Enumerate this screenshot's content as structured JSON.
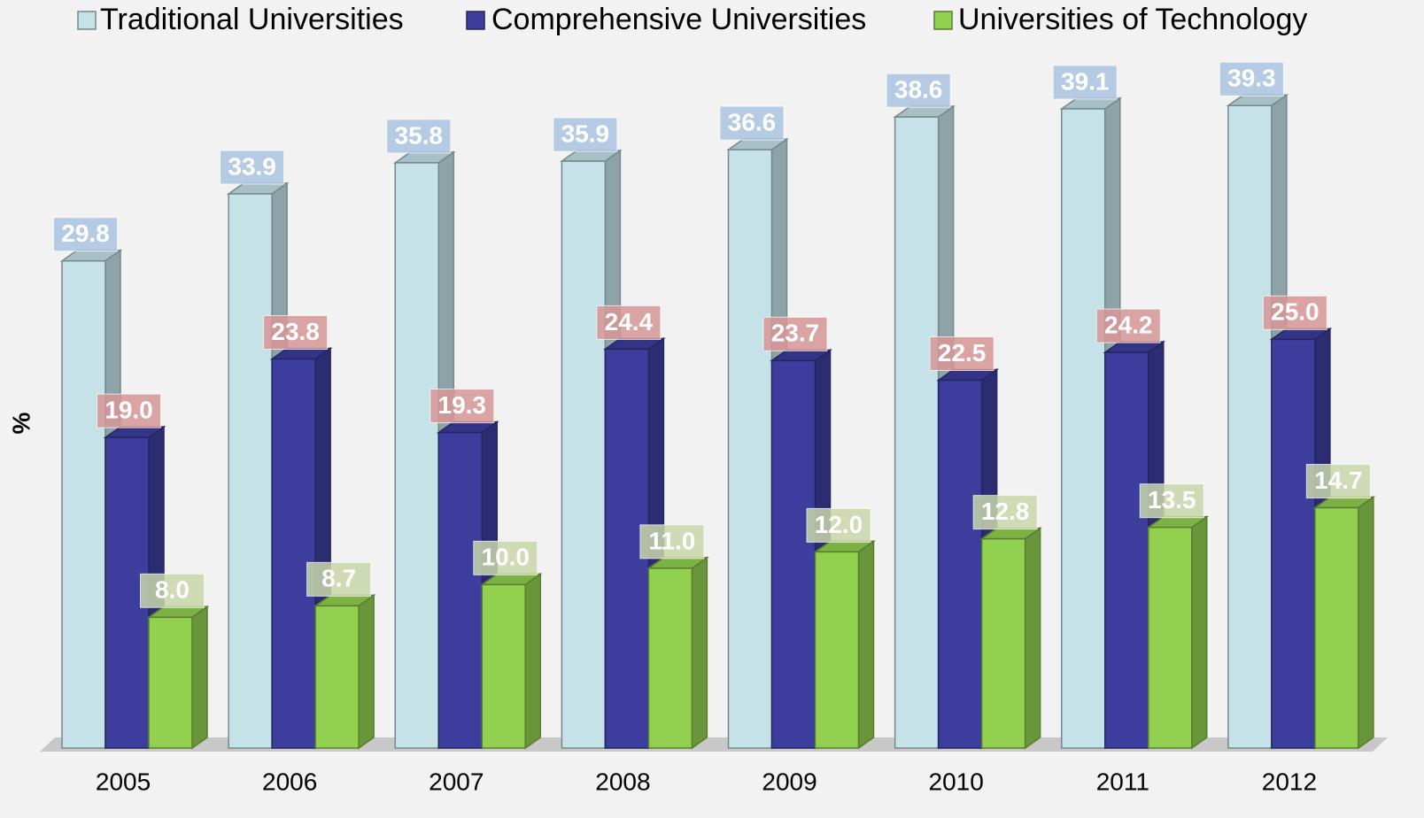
{
  "chart_data": {
    "type": "bar3d",
    "y_label": "%",
    "categories": [
      "2005",
      "2006",
      "2007",
      "2008",
      "2009",
      "2010",
      "2011",
      "2012"
    ],
    "ylim": [
      0,
      45
    ],
    "legend": "top",
    "series": [
      {
        "name": "Traditional Universities",
        "color": "#c4e2e8",
        "values": [
          29.8,
          33.9,
          35.8,
          35.9,
          36.6,
          38.6,
          39.1,
          39.3
        ],
        "value_labels": [
          "29.8",
          "33.9",
          "35.8",
          "35.9",
          "36.6",
          "38.6",
          "39.1",
          "39.3"
        ]
      },
      {
        "name": "Comprehensive Universities",
        "color": "#3d3d9e",
        "values": [
          19.0,
          23.8,
          19.3,
          24.4,
          23.7,
          22.5,
          24.2,
          25.0
        ],
        "value_labels": [
          "19.0",
          "23.8",
          "19.3",
          "24.4",
          "23.7",
          "22.5",
          "24.2",
          "25.0"
        ]
      },
      {
        "name": "Universities of Technology",
        "color": "#92d050",
        "values": [
          8.0,
          8.7,
          10.0,
          11.0,
          12.0,
          12.8,
          13.5,
          14.7
        ],
        "value_labels": [
          "8.0",
          "8.7",
          "10.0",
          "11.0",
          "12.0",
          "12.8",
          "13.5",
          "14.7"
        ]
      }
    ]
  }
}
